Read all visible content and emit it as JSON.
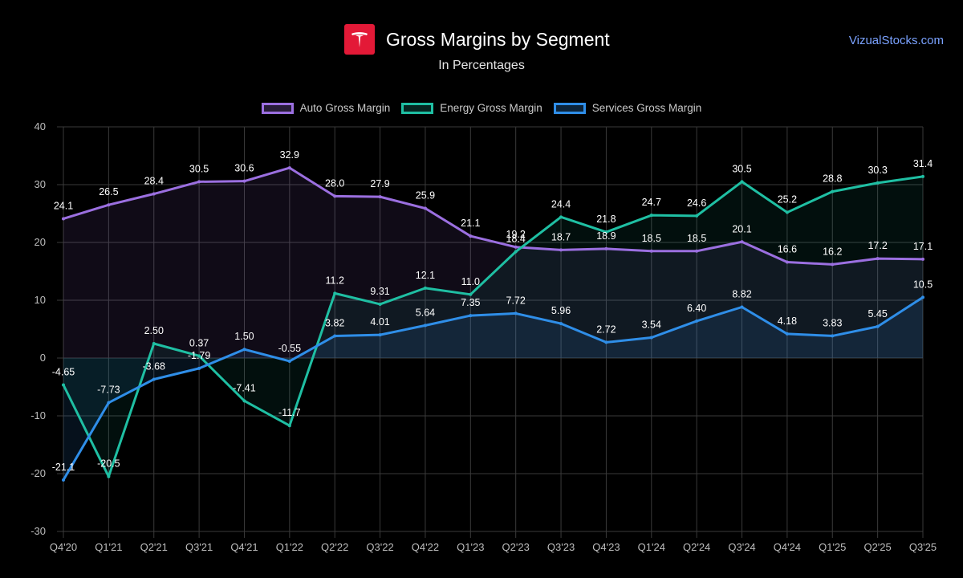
{
  "header": {
    "title": "Gross Margins by Segment",
    "subtitle": "In Percentages",
    "brand": "VizualStocks.com",
    "logo_icon": "tesla-logo-icon"
  },
  "colors": {
    "auto": "#9b6fe0",
    "energy": "#1fbfa3",
    "services": "#2f8ee8",
    "logo_bg": "#e31937"
  },
  "chart_data": {
    "type": "line",
    "title": "Gross Margins by Segment",
    "subtitle": "In Percentages",
    "xlabel": "",
    "ylabel": "",
    "ylim": [
      -30,
      40
    ],
    "yticks": [
      40,
      30,
      20,
      10,
      0,
      -10,
      -20,
      -30
    ],
    "grid": true,
    "legend_position": "top-center",
    "categories": [
      "Q4'20",
      "Q1'21",
      "Q2'21",
      "Q3'21",
      "Q4'21",
      "Q1'22",
      "Q2'22",
      "Q3'22",
      "Q4'22",
      "Q1'23",
      "Q2'23",
      "Q3'23",
      "Q4'23",
      "Q1'24",
      "Q2'24",
      "Q3'24",
      "Q4'24",
      "Q1'25",
      "Q2'25",
      "Q3'25"
    ],
    "series": [
      {
        "name": "Auto Gross Margin",
        "key": "auto",
        "values": [
          24.1,
          26.5,
          28.4,
          30.5,
          30.6,
          32.9,
          28.0,
          27.9,
          25.9,
          21.1,
          19.2,
          18.7,
          18.9,
          18.5,
          18.5,
          20.1,
          16.6,
          16.2,
          17.2,
          17.1
        ],
        "labels": [
          "24.1",
          "26.5",
          "28.4",
          "30.5",
          "30.6",
          "32.9",
          "28.0",
          "27.9",
          "25.9",
          "21.1",
          "19.2",
          "18.7",
          "18.9",
          "18.5",
          "18.5",
          "20.1",
          "16.6",
          "16.2",
          "17.2",
          "17.1"
        ]
      },
      {
        "name": "Energy Gross Margin",
        "key": "energy",
        "values": [
          -4.65,
          -20.5,
          2.5,
          0.37,
          -7.41,
          -11.7,
          11.2,
          9.31,
          12.1,
          11.0,
          18.4,
          24.4,
          21.8,
          24.7,
          24.6,
          30.5,
          25.2,
          28.8,
          30.3,
          31.4
        ],
        "labels": [
          "-4.65",
          "-20.5",
          "2.50",
          "0.37",
          "-7.41",
          "-11.7",
          "11.2",
          "9.31",
          "12.1",
          "11.0",
          "18.4",
          "24.4",
          "21.8",
          "24.7",
          "24.6",
          "30.5",
          "25.2",
          "28.8",
          "30.3",
          "31.4"
        ]
      },
      {
        "name": "Services Gross Margin",
        "key": "services",
        "values": [
          -21.1,
          -7.73,
          -3.68,
          -1.79,
          1.5,
          -0.55,
          3.82,
          4.01,
          5.64,
          7.35,
          7.72,
          5.96,
          2.72,
          3.54,
          6.4,
          8.82,
          4.18,
          3.83,
          5.45,
          10.5
        ],
        "labels": [
          "-21.1",
          "-7.73",
          "-3.68",
          "-1.79",
          "1.50",
          "-0.55",
          "3.82",
          "4.01",
          "5.64",
          "7.35",
          "7.72",
          "5.96",
          "2.72",
          "3.54",
          "6.40",
          "8.82",
          "4.18",
          "3.83",
          "5.45",
          "10.5"
        ]
      }
    ]
  }
}
